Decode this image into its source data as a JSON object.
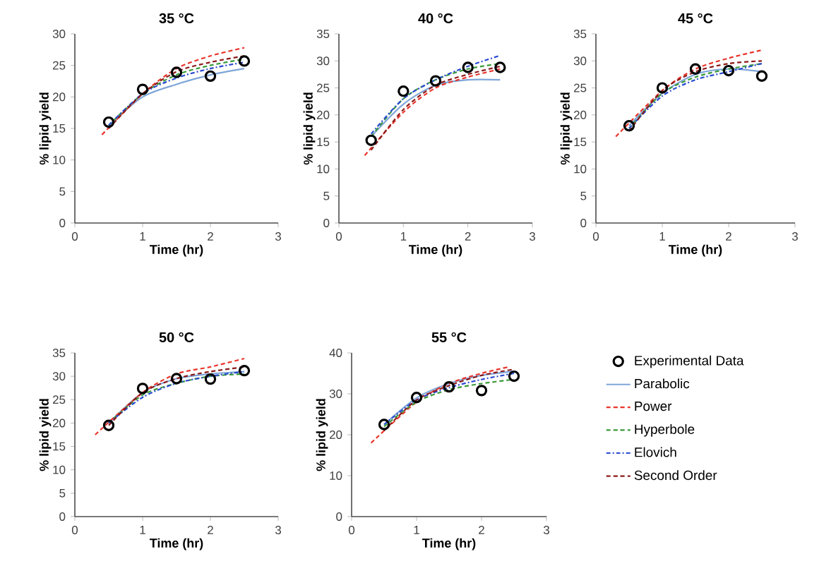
{
  "chart_data": [
    {
      "type": "line",
      "title": "35 °C",
      "xlabel": "Time (hr)",
      "ylabel": "% lipid yield",
      "xlim": [
        0,
        3
      ],
      "xticks": [
        0,
        1,
        2,
        3
      ],
      "ylim": [
        0,
        30
      ],
      "yticks": [
        0,
        5,
        10,
        15,
        20,
        25,
        30
      ],
      "series": [
        {
          "type": "scatter",
          "marker": "circle",
          "color": "#000000",
          "x": [
            0.5,
            1,
            1.5,
            2,
            2.5
          ],
          "values": [
            16,
            21.2,
            23.9,
            23.3,
            25.7
          ]
        },
        {
          "color": "#7fa6d8",
          "line_style": "solid",
          "x": [
            0.5,
            1,
            1.5,
            2,
            2.5
          ],
          "values": [
            15.5,
            20,
            22,
            23.5,
            24.5
          ]
        },
        {
          "color": "#e8352b",
          "line_style": "dashed",
          "x": [
            0.4,
            1,
            1.5,
            2,
            2.5
          ],
          "values": [
            14,
            20.5,
            24.5,
            26.5,
            27.8
          ]
        },
        {
          "color": "#3a9a3a",
          "line_style": "dashed",
          "x": [
            0.5,
            1,
            1.5,
            2,
            2.5
          ],
          "values": [
            15.5,
            20.5,
            23.5,
            25,
            26
          ]
        },
        {
          "color": "#2a4bd0",
          "line_style": "dotted",
          "x": [
            0.5,
            1,
            1.5,
            2,
            2.5
          ],
          "values": [
            15.5,
            20.5,
            23,
            24.5,
            25.5
          ]
        },
        {
          "color": "#8b1a1a",
          "line_style": "dashed",
          "x": [
            0.5,
            1,
            1.5,
            2,
            2.5
          ],
          "values": [
            15,
            20.5,
            24,
            25.5,
            26.5
          ]
        }
      ]
    },
    {
      "type": "line",
      "title": "40 °C",
      "xlabel": "Time (hr)",
      "ylabel": "% lipid yield",
      "xlim": [
        0,
        3
      ],
      "xticks": [
        0,
        1,
        2,
        3
      ],
      "ylim": [
        0,
        35
      ],
      "yticks": [
        0,
        5,
        10,
        15,
        20,
        25,
        30,
        35
      ],
      "series": [
        {
          "type": "scatter",
          "marker": "circle",
          "color": "#000000",
          "x": [
            0.5,
            1,
            1.5,
            2,
            2.5
          ],
          "values": [
            15.3,
            24.4,
            26.3,
            28.8,
            28.8
          ]
        },
        {
          "color": "#7fa6d8",
          "line_style": "solid",
          "x": [
            0.5,
            1,
            1.5,
            2,
            2.5
          ],
          "values": [
            16,
            22,
            25.5,
            26.5,
            26.5
          ]
        },
        {
          "color": "#e8352b",
          "line_style": "dashed",
          "x": [
            0.4,
            1,
            1.5,
            2,
            2.5
          ],
          "values": [
            12.5,
            20.5,
            25,
            27,
            28.5
          ]
        },
        {
          "color": "#3a9a3a",
          "line_style": "dashed",
          "x": [
            0.5,
            1,
            1.5,
            2,
            2.5
          ],
          "values": [
            16,
            23,
            26.5,
            28.5,
            29.5
          ]
        },
        {
          "color": "#2a4bd0",
          "line_style": "dotted",
          "x": [
            0.5,
            1,
            1.5,
            2,
            2.5
          ],
          "values": [
            16.5,
            23,
            26.5,
            29,
            31
          ]
        },
        {
          "color": "#8b1a1a",
          "line_style": "dashed",
          "x": [
            0.5,
            1,
            1.5,
            2,
            2.5
          ],
          "values": [
            13.5,
            21,
            25.5,
            27.5,
            29
          ]
        }
      ]
    },
    {
      "type": "line",
      "title": "45 °C",
      "xlabel": "Time (hr)",
      "ylabel": "% lipid yield",
      "xlim": [
        0,
        3
      ],
      "xticks": [
        0,
        1,
        2,
        3
      ],
      "ylim": [
        0,
        35
      ],
      "yticks": [
        0,
        5,
        10,
        15,
        20,
        25,
        30,
        35
      ],
      "series": [
        {
          "type": "scatter",
          "marker": "circle",
          "color": "#000000",
          "x": [
            0.5,
            1,
            1.5,
            2,
            2.5
          ],
          "values": [
            18,
            25,
            28.5,
            28.2,
            27.2
          ]
        },
        {
          "color": "#7fa6d8",
          "line_style": "solid",
          "x": [
            0.5,
            1,
            1.5,
            2,
            2.5
          ],
          "values": [
            18,
            24,
            27.5,
            28.5,
            28
          ]
        },
        {
          "color": "#e8352b",
          "line_style": "dashed",
          "x": [
            0.3,
            1,
            1.5,
            2,
            2.5
          ],
          "values": [
            16,
            24.5,
            28.5,
            30.5,
            32
          ]
        },
        {
          "color": "#3a9a3a",
          "line_style": "dashed",
          "x": [
            0.5,
            1,
            1.5,
            2,
            2.5
          ],
          "values": [
            17.5,
            24,
            27,
            28.5,
            29.5
          ]
        },
        {
          "color": "#2a4bd0",
          "line_style": "dotted",
          "x": [
            0.5,
            1,
            1.5,
            2,
            2.5
          ],
          "values": [
            17.5,
            23.5,
            26.5,
            28,
            29.5
          ]
        },
        {
          "color": "#8b1a1a",
          "line_style": "dashed",
          "x": [
            0.5,
            1,
            1.5,
            2,
            2.5
          ],
          "values": [
            17,
            24.5,
            28,
            29.5,
            30
          ]
        }
      ]
    },
    {
      "type": "line",
      "title": "50 °C",
      "xlabel": "Time (hr)",
      "ylabel": "% lipid yield",
      "xlim": [
        0,
        3
      ],
      "xticks": [
        0,
        1,
        2,
        3
      ],
      "ylim": [
        0,
        35
      ],
      "yticks": [
        0,
        5,
        10,
        15,
        20,
        25,
        30,
        35
      ],
      "series": [
        {
          "type": "scatter",
          "marker": "circle",
          "color": "#000000",
          "x": [
            0.5,
            1,
            1.5,
            2,
            2.5
          ],
          "values": [
            19.5,
            27.4,
            29.5,
            29.4,
            31.2
          ]
        },
        {
          "color": "#7fa6d8",
          "line_style": "solid",
          "x": [
            0.5,
            1,
            1.5,
            2,
            2.5
          ],
          "values": [
            20,
            26.5,
            29.5,
            30.5,
            31
          ]
        },
        {
          "color": "#e8352b",
          "line_style": "dashed",
          "x": [
            0.3,
            1,
            1.5,
            2,
            2.5
          ],
          "values": [
            17.5,
            26.5,
            30.5,
            32,
            33.8
          ]
        },
        {
          "color": "#3a9a3a",
          "line_style": "dashed",
          "x": [
            0.5,
            1,
            1.5,
            2,
            2.5
          ],
          "values": [
            20,
            26,
            28.5,
            30,
            30.5
          ]
        },
        {
          "color": "#2a4bd0",
          "line_style": "dotted",
          "x": [
            0.5,
            1,
            1.5,
            2,
            2.5
          ],
          "values": [
            20,
            25.5,
            28.5,
            30,
            31
          ]
        },
        {
          "color": "#8b1a1a",
          "line_style": "dashed",
          "x": [
            0.5,
            1,
            1.5,
            2,
            2.5
          ],
          "values": [
            19.5,
            26.5,
            29.5,
            31,
            32
          ]
        }
      ]
    },
    {
      "type": "line",
      "title": "55 °C",
      "xlabel": "Time (hr)",
      "ylabel": "% lipid yield",
      "xlim": [
        0,
        3
      ],
      "xticks": [
        0,
        1,
        2,
        3
      ],
      "ylim": [
        0,
        40
      ],
      "yticks": [
        0,
        10,
        20,
        30,
        40
      ],
      "legend": "right",
      "series": [
        {
          "type": "scatter",
          "name": "Experimental Data",
          "marker": "circle",
          "color": "#000000",
          "x": [
            0.5,
            1,
            1.5,
            2,
            2.5
          ],
          "values": [
            22.5,
            29.1,
            31.7,
            30.8,
            34.3
          ]
        },
        {
          "name": "Parabolic",
          "color": "#7fa6d8",
          "line_style": "solid",
          "x": [
            0.5,
            1,
            1.5,
            2,
            2.5
          ],
          "values": [
            22.5,
            29,
            32.5,
            34.5,
            35.5
          ]
        },
        {
          "name": "Power",
          "color": "#e8352b",
          "line_style": "dashed",
          "x": [
            0.3,
            1,
            1.5,
            2,
            2.4
          ],
          "values": [
            18,
            28,
            32.5,
            35,
            36.5
          ]
        },
        {
          "name": "Hyperbole",
          "color": "#3a9a3a",
          "line_style": "dashed",
          "x": [
            0.5,
            1,
            1.5,
            2,
            2.5
          ],
          "values": [
            22,
            28,
            31,
            32.5,
            33.5
          ]
        },
        {
          "name": "Elovich",
          "color": "#2a4bd0",
          "line_style": "dotted",
          "x": [
            0.5,
            1,
            1.5,
            2,
            2.5
          ],
          "values": [
            22.5,
            28.5,
            31.5,
            33.5,
            35
          ]
        },
        {
          "name": "Second Order",
          "color": "#8b1a1a",
          "line_style": "dashed",
          "x": [
            0.5,
            1,
            1.5,
            2,
            2.5
          ],
          "values": [
            21,
            28.5,
            32,
            34.5,
            36
          ]
        }
      ]
    }
  ]
}
